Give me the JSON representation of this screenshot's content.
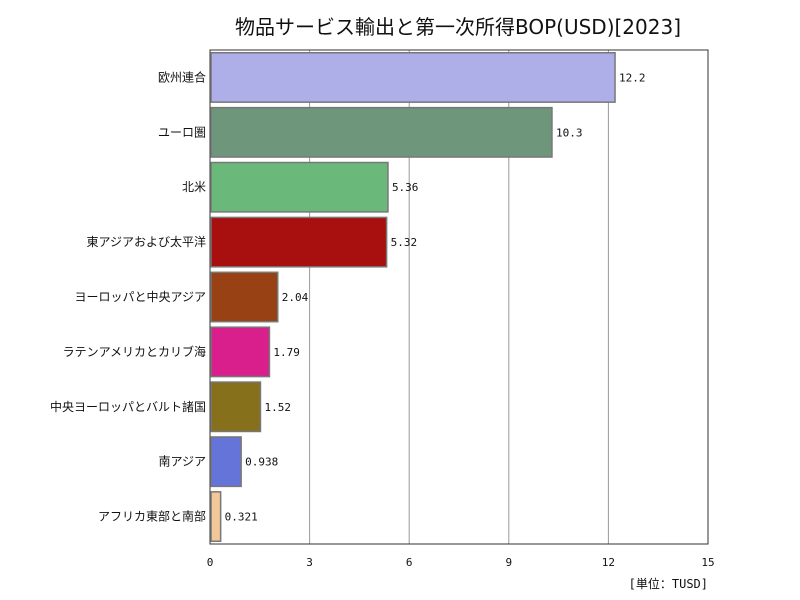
{
  "chart_data": {
    "type": "bar",
    "orientation": "horizontal",
    "title": "物品サービス輸出と第一次所得BOP(USD)[2023]",
    "unit_label": "[単位：TUSD]",
    "xlim": [
      0,
      15
    ],
    "xticks": [
      0,
      3,
      6,
      9,
      12,
      15
    ],
    "grid": true,
    "categories": [
      "欧州連合",
      "ユーロ圏",
      "北米",
      "東アジアおよび太平洋",
      "ヨーロッパと中央アジア",
      "ラテンアメリカとカリブ海",
      "中央ヨーロッパとバルト諸国",
      "南アジア",
      "アフリカ東部と南部"
    ],
    "values": [
      12.2,
      10.3,
      5.36,
      5.32,
      2.04,
      1.79,
      1.52,
      0.938,
      0.321
    ],
    "value_labels": [
      "12.2",
      "10.3",
      "5.36",
      "5.32",
      "2.04",
      "1.79",
      "1.52",
      "0.938",
      "0.321"
    ],
    "colors": [
      "#aeaee8",
      "#6e967a",
      "#6ab87a",
      "#a80f0f",
      "#974115",
      "#d81f8c",
      "#86701b",
      "#6474d8",
      "#f2c898"
    ]
  }
}
